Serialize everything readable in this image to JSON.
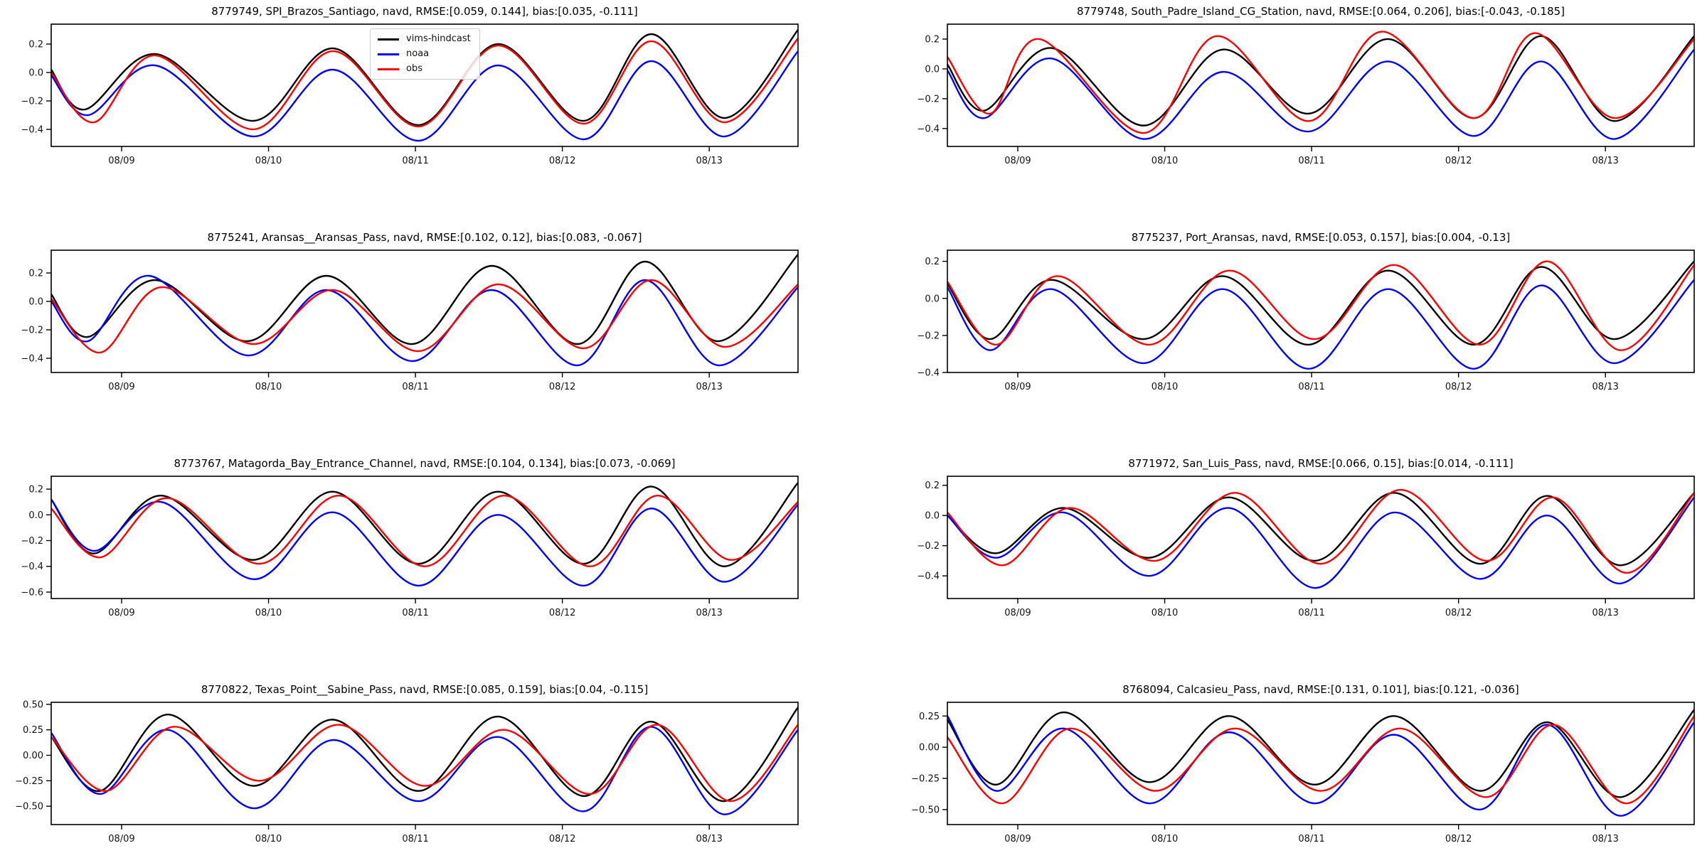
{
  "figure": {
    "background": "#ffffff"
  },
  "legend": {
    "entries": [
      {
        "label": "vims-hindcast",
        "color": "#000000"
      },
      {
        "label": "noaa",
        "color": "#0000ff"
      },
      {
        "label": "obs",
        "color": "#ff0000"
      }
    ],
    "position": "upper-center-left of first subplot"
  },
  "chart_data": [
    {
      "type": "line",
      "title": "8779749, SPI_Brazos_Santiago, navd, RMSE:[0.059, 0.144], bias:[0.035, -0.111]",
      "xlim": [
        0,
        122
      ],
      "ylim": [
        -0.52,
        0.34
      ],
      "xticks": {
        "t": [
          11.5,
          35.5,
          59.5,
          83.5,
          107.5
        ],
        "labels": [
          "08/09",
          "08/10",
          "08/11",
          "08/12",
          "08/13"
        ]
      },
      "yticks": {
        "values": [
          0.2,
          0.0,
          -0.2,
          -0.4
        ],
        "labels": [
          "0.2",
          "0.0",
          "−0.2",
          "−0.4"
        ]
      },
      "series": [
        {
          "name": "vims-hindcast",
          "color": "#000000",
          "x": [
            0,
            5.5,
            17,
            33,
            46,
            60,
            73,
            87,
            98,
            110,
            122
          ],
          "values": [
            0.02,
            -0.26,
            0.13,
            -0.34,
            0.17,
            -0.37,
            0.2,
            -0.34,
            0.27,
            -0.32,
            0.3
          ]
        },
        {
          "name": "noaa",
          "color": "#0000ff",
          "x": [
            0,
            6,
            17,
            33,
            46,
            60,
            73,
            87,
            98,
            110,
            122
          ],
          "values": [
            -0.02,
            -0.3,
            0.05,
            -0.45,
            0.02,
            -0.48,
            0.05,
            -0.47,
            0.08,
            -0.45,
            0.15
          ]
        },
        {
          "name": "obs",
          "color": "#ff0000",
          "x": [
            0,
            7,
            17,
            33,
            46,
            60,
            73,
            87,
            98,
            110,
            122
          ],
          "values": [
            0.0,
            -0.35,
            0.12,
            -0.4,
            0.15,
            -0.38,
            0.19,
            -0.36,
            0.22,
            -0.35,
            0.24
          ]
        }
      ],
      "show_legend": true
    },
    {
      "type": "line",
      "title": "8779748, South_Padre_Island_CG_Station, navd, RMSE:[0.064, 0.206], bias:[-0.043, -0.185]",
      "xlim": [
        0,
        122
      ],
      "ylim": [
        -0.52,
        0.3
      ],
      "xticks": {
        "t": [
          11.5,
          35.5,
          59.5,
          83.5,
          107.5
        ],
        "labels": [
          "08/09",
          "08/10",
          "08/11",
          "08/12",
          "08/13"
        ]
      },
      "yticks": {
        "values": [
          0.2,
          0.0,
          -0.2,
          -0.4
        ],
        "labels": [
          "0.2",
          "0.0",
          "−0.2",
          "−0.4"
        ]
      },
      "series": [
        {
          "name": "vims-hindcast",
          "color": "#000000",
          "x": [
            0,
            6,
            17,
            32,
            45,
            59,
            72,
            86,
            97,
            109,
            122
          ],
          "values": [
            0.03,
            -0.28,
            0.14,
            -0.38,
            0.13,
            -0.3,
            0.2,
            -0.33,
            0.22,
            -0.35,
            0.22
          ]
        },
        {
          "name": "noaa",
          "color": "#0000ff",
          "x": [
            0,
            6,
            17,
            32,
            45,
            59,
            72,
            86,
            97,
            109,
            122
          ],
          "values": [
            -0.01,
            -0.33,
            0.07,
            -0.47,
            -0.02,
            -0.42,
            0.05,
            -0.45,
            0.05,
            -0.47,
            0.13
          ]
        },
        {
          "name": "obs",
          "color": "#ff0000",
          "x": [
            0,
            7,
            15,
            32,
            44,
            59,
            71,
            86,
            96,
            109,
            122
          ],
          "values": [
            0.08,
            -0.3,
            0.2,
            -0.43,
            0.22,
            -0.35,
            0.25,
            -0.33,
            0.24,
            -0.33,
            0.2
          ]
        }
      ],
      "show_legend": false
    },
    {
      "type": "line",
      "title": "8775241, Aransas__Aransas_Pass, navd, RMSE:[0.102, 0.12], bias:[0.083, -0.067]",
      "xlim": [
        0,
        122
      ],
      "ylim": [
        -0.5,
        0.36
      ],
      "xticks": {
        "t": [
          11.5,
          35.5,
          59.5,
          83.5,
          107.5
        ],
        "labels": [
          "08/09",
          "08/10",
          "08/11",
          "08/12",
          "08/13"
        ]
      },
      "yticks": {
        "values": [
          0.2,
          0.0,
          -0.2,
          -0.4
        ],
        "labels": [
          "0.2",
          "0.0",
          "−0.2",
          "−0.4"
        ]
      },
      "series": [
        {
          "name": "vims-hindcast",
          "color": "#000000",
          "x": [
            0,
            6,
            17,
            32,
            45,
            59,
            72,
            86,
            97,
            109,
            122
          ],
          "values": [
            0.05,
            -0.25,
            0.15,
            -0.28,
            0.18,
            -0.3,
            0.25,
            -0.3,
            0.28,
            -0.28,
            0.33
          ]
        },
        {
          "name": "noaa",
          "color": "#0000ff",
          "x": [
            0,
            6,
            16,
            32,
            45,
            59,
            72,
            86,
            97,
            109,
            122
          ],
          "values": [
            0.0,
            -0.28,
            0.18,
            -0.38,
            0.08,
            -0.42,
            0.08,
            -0.45,
            0.15,
            -0.45,
            0.1
          ]
        },
        {
          "name": "obs",
          "color": "#ff0000",
          "x": [
            0,
            8,
            18,
            33,
            46,
            60,
            73,
            87,
            98,
            110,
            122
          ],
          "values": [
            0.02,
            -0.36,
            0.1,
            -0.3,
            0.08,
            -0.35,
            0.12,
            -0.33,
            0.15,
            -0.32,
            0.12
          ]
        }
      ],
      "show_legend": false
    },
    {
      "type": "line",
      "title": "8775237, Port_Aransas, navd, RMSE:[0.053, 0.157], bias:[0.004, -0.13]",
      "xlim": [
        0,
        122
      ],
      "ylim": [
        -0.4,
        0.26
      ],
      "xticks": {
        "t": [
          11.5,
          35.5,
          59.5,
          83.5,
          107.5
        ],
        "labels": [
          "08/09",
          "08/10",
          "08/11",
          "08/12",
          "08/13"
        ]
      },
      "yticks": {
        "values": [
          0.2,
          0.0,
          -0.2,
          -0.4
        ],
        "labels": [
          "0.2",
          "0.0",
          "−0.2",
          "−0.4"
        ]
      },
      "series": [
        {
          "name": "vims-hindcast",
          "color": "#000000",
          "x": [
            0,
            7,
            17,
            32,
            45,
            59,
            72,
            86,
            97,
            109,
            122
          ],
          "values": [
            0.08,
            -0.22,
            0.1,
            -0.22,
            0.12,
            -0.25,
            0.15,
            -0.25,
            0.17,
            -0.22,
            0.2
          ]
        },
        {
          "name": "noaa",
          "color": "#0000ff",
          "x": [
            0,
            7,
            17,
            32,
            45,
            59,
            72,
            86,
            97,
            109,
            122
          ],
          "values": [
            0.06,
            -0.28,
            0.05,
            -0.35,
            0.05,
            -0.38,
            0.05,
            -0.38,
            0.07,
            -0.35,
            0.1
          ]
        },
        {
          "name": "obs",
          "color": "#ff0000",
          "x": [
            0,
            8,
            18,
            33,
            46,
            60,
            73,
            87,
            98,
            110,
            122
          ],
          "values": [
            0.09,
            -0.25,
            0.12,
            -0.25,
            0.15,
            -0.22,
            0.18,
            -0.25,
            0.2,
            -0.28,
            0.18
          ]
        }
      ],
      "show_legend": false
    },
    {
      "type": "line",
      "title": "8773767, Matagorda_Bay_Entrance_Channel, navd, RMSE:[0.104, 0.134], bias:[0.073, -0.069]",
      "xlim": [
        0,
        122
      ],
      "ylim": [
        -0.65,
        0.3
      ],
      "xticks": {
        "t": [
          11.5,
          35.5,
          59.5,
          83.5,
          107.5
        ],
        "labels": [
          "08/09",
          "08/10",
          "08/11",
          "08/12",
          "08/13"
        ]
      },
      "yticks": {
        "values": [
          0.2,
          0.0,
          -0.2,
          -0.4,
          -0.6
        ],
        "labels": [
          "0.2",
          "0.0",
          "−0.2",
          "−0.4",
          "−0.6"
        ]
      },
      "series": [
        {
          "name": "vims-hindcast",
          "color": "#000000",
          "x": [
            0,
            7,
            18,
            33,
            46,
            60,
            73,
            87,
            98,
            110,
            122
          ],
          "values": [
            0.12,
            -0.3,
            0.15,
            -0.35,
            0.18,
            -0.38,
            0.18,
            -0.38,
            0.22,
            -0.4,
            0.25
          ]
        },
        {
          "name": "noaa",
          "color": "#0000ff",
          "x": [
            0,
            7,
            18,
            33,
            46,
            60,
            73,
            87,
            98,
            110,
            122
          ],
          "values": [
            0.12,
            -0.28,
            0.1,
            -0.5,
            0.02,
            -0.55,
            0.0,
            -0.55,
            0.05,
            -0.52,
            0.08
          ]
        },
        {
          "name": "obs",
          "color": "#ff0000",
          "x": [
            0,
            8,
            19,
            34,
            47,
            61,
            74,
            88,
            99,
            111,
            122
          ],
          "values": [
            0.05,
            -0.33,
            0.13,
            -0.38,
            0.15,
            -0.4,
            0.15,
            -0.4,
            0.15,
            -0.35,
            0.1
          ]
        }
      ],
      "show_legend": false
    },
    {
      "type": "line",
      "title": "8771972, San_Luis_Pass, navd, RMSE:[0.066, 0.15], bias:[0.014, -0.111]",
      "xlim": [
        0,
        122
      ],
      "ylim": [
        -0.55,
        0.26
      ],
      "xticks": {
        "t": [
          11.5,
          35.5,
          59.5,
          83.5,
          107.5
        ],
        "labels": [
          "08/09",
          "08/10",
          "08/11",
          "08/12",
          "08/13"
        ]
      },
      "yticks": {
        "values": [
          0.2,
          0.0,
          -0.2,
          -0.4
        ],
        "labels": [
          "0.2",
          "0.0",
          "−0.2",
          "−0.4"
        ]
      },
      "series": [
        {
          "name": "vims-hindcast",
          "color": "#000000",
          "x": [
            0,
            8,
            19,
            33,
            46,
            60,
            73,
            87,
            98,
            110,
            122
          ],
          "values": [
            0.0,
            -0.25,
            0.05,
            -0.28,
            0.12,
            -0.3,
            0.15,
            -0.32,
            0.13,
            -0.33,
            0.15
          ]
        },
        {
          "name": "noaa",
          "color": "#0000ff",
          "x": [
            0,
            8,
            19,
            33,
            46,
            60,
            73,
            87,
            98,
            110,
            122
          ],
          "values": [
            0.0,
            -0.28,
            0.02,
            -0.4,
            0.05,
            -0.48,
            0.02,
            -0.42,
            0.0,
            -0.45,
            0.12
          ]
        },
        {
          "name": "obs",
          "color": "#ff0000",
          "x": [
            0,
            9,
            20,
            34,
            47,
            61,
            74,
            88,
            99,
            111,
            122
          ],
          "values": [
            0.02,
            -0.33,
            0.05,
            -0.3,
            0.15,
            -0.32,
            0.17,
            -0.3,
            0.12,
            -0.38,
            0.15
          ]
        }
      ],
      "show_legend": false
    },
    {
      "type": "line",
      "title": "8770822, Texas_Point__Sabine_Pass, navd, RMSE:[0.085, 0.159], bias:[0.04, -0.115]",
      "xlim": [
        0,
        122
      ],
      "ylim": [
        -0.68,
        0.52
      ],
      "xticks": {
        "t": [
          11.5,
          35.5,
          59.5,
          83.5,
          107.5
        ],
        "labels": [
          "08/09",
          "08/10",
          "08/11",
          "08/12",
          "08/13"
        ]
      },
      "yticks": {
        "values": [
          0.5,
          0.25,
          0.0,
          -0.25,
          -0.5
        ],
        "labels": [
          "0.50",
          "0.25",
          "0.00",
          "−0.25",
          "−0.50"
        ]
      },
      "series": [
        {
          "name": "vims-hindcast",
          "color": "#000000",
          "x": [
            0,
            8,
            19,
            33,
            46,
            60,
            73,
            87,
            98,
            110,
            122
          ],
          "values": [
            0.18,
            -0.35,
            0.4,
            -0.3,
            0.35,
            -0.35,
            0.38,
            -0.4,
            0.33,
            -0.45,
            0.47
          ]
        },
        {
          "name": "noaa",
          "color": "#0000ff",
          "x": [
            0,
            8,
            19,
            33,
            46,
            60,
            73,
            87,
            98,
            110,
            122
          ],
          "values": [
            0.22,
            -0.38,
            0.25,
            -0.52,
            0.15,
            -0.45,
            0.18,
            -0.55,
            0.28,
            -0.58,
            0.25
          ]
        },
        {
          "name": "obs",
          "color": "#ff0000",
          "x": [
            0,
            9,
            20,
            34,
            47,
            61,
            74,
            88,
            99,
            111,
            122
          ],
          "values": [
            0.18,
            -0.35,
            0.28,
            -0.25,
            0.3,
            -0.3,
            0.25,
            -0.38,
            0.3,
            -0.45,
            0.3
          ]
        }
      ],
      "show_legend": false
    },
    {
      "type": "line",
      "title": "8768094, Calcasieu_Pass, navd, RMSE:[0.131, 0.101], bias:[0.121, -0.036]",
      "xlim": [
        0,
        122
      ],
      "ylim": [
        -0.62,
        0.36
      ],
      "xticks": {
        "t": [
          11.5,
          35.5,
          59.5,
          83.5,
          107.5
        ],
        "labels": [
          "08/09",
          "08/10",
          "08/11",
          "08/12",
          "08/13"
        ]
      },
      "yticks": {
        "values": [
          0.25,
          0.0,
          -0.25,
          -0.5
        ],
        "labels": [
          "0.25",
          "0.00",
          "−0.25",
          "−0.50"
        ]
      },
      "series": [
        {
          "name": "vims-hindcast",
          "color": "#000000",
          "x": [
            0,
            8,
            19,
            33,
            46,
            60,
            73,
            87,
            98,
            110,
            122
          ],
          "values": [
            0.22,
            -0.3,
            0.28,
            -0.28,
            0.25,
            -0.3,
            0.25,
            -0.35,
            0.2,
            -0.4,
            0.3
          ]
        },
        {
          "name": "noaa",
          "color": "#0000ff",
          "x": [
            0,
            8,
            19,
            33,
            46,
            60,
            73,
            87,
            98,
            110,
            122
          ],
          "values": [
            0.25,
            -0.35,
            0.15,
            -0.45,
            0.12,
            -0.45,
            0.1,
            -0.5,
            0.18,
            -0.55,
            0.2
          ]
        },
        {
          "name": "obs",
          "color": "#ff0000",
          "x": [
            0,
            9,
            20,
            34,
            47,
            61,
            74,
            88,
            99,
            111,
            122
          ],
          "values": [
            0.08,
            -0.45,
            0.15,
            -0.35,
            0.15,
            -0.35,
            0.15,
            -0.4,
            0.18,
            -0.45,
            0.25
          ]
        }
      ],
      "show_legend": false
    }
  ]
}
